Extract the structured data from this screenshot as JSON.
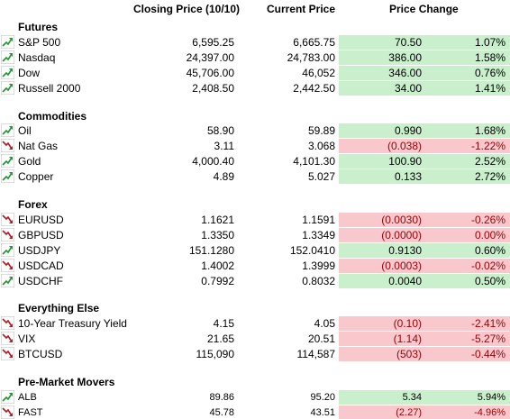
{
  "header": {
    "closing": "Closing Price (10/10)",
    "current": "Current Price",
    "change": "Price Change"
  },
  "sections": [
    {
      "title": "Futures",
      "rows": [
        {
          "name": "S&P 500",
          "close": "6,595.25",
          "current": "6,665.75",
          "change": "70.50",
          "pct": "1.07%",
          "trend": "up"
        },
        {
          "name": "Nasdaq",
          "close": "24,397.00",
          "current": "24,783.00",
          "change": "386.00",
          "pct": "1.58%",
          "trend": "up"
        },
        {
          "name": "Dow",
          "close": "45,706.00",
          "current": "46,052",
          "change": "346.00",
          "pct": "0.76%",
          "trend": "up"
        },
        {
          "name": "Russell 2000",
          "close": "2,408.50",
          "current": "2,442.50",
          "change": "34.00",
          "pct": "1.41%",
          "trend": "up"
        }
      ]
    },
    {
      "title": "Commodities",
      "rows": [
        {
          "name": "Oil",
          "close": "58.90",
          "current": "59.89",
          "change": "0.990",
          "pct": "1.68%",
          "trend": "up"
        },
        {
          "name": "Nat Gas",
          "close": "3.11",
          "current": "3.068",
          "change": "(0.038)",
          "pct": "-1.22%",
          "trend": "down"
        },
        {
          "name": "Gold",
          "close": "4,000.40",
          "current": "4,101.30",
          "change": "100.90",
          "pct": "2.52%",
          "trend": "up"
        },
        {
          "name": "Copper",
          "close": "4.89",
          "current": "5.027",
          "change": "0.133",
          "pct": "2.72%",
          "trend": "up"
        }
      ]
    },
    {
      "title": "Forex",
      "rows": [
        {
          "name": "EURUSD",
          "close": "1.1621",
          "current": "1.1591",
          "change": "(0.0030)",
          "pct": "-0.26%",
          "trend": "down"
        },
        {
          "name": "GBPUSD",
          "close": "1.3350",
          "current": "1.3349",
          "change": "(0.0000)",
          "pct": "0.00%",
          "trend": "down"
        },
        {
          "name": "USDJPY",
          "close": "151.1280",
          "current": "152.0410",
          "change": "0.9130",
          "pct": "0.60%",
          "trend": "up"
        },
        {
          "name": "USDCAD",
          "close": "1.4002",
          "current": "1.3999",
          "change": "(0.0003)",
          "pct": "-0.02%",
          "trend": "down"
        },
        {
          "name": "USDCHF",
          "close": "0.7992",
          "current": "0.8032",
          "change": "0.0040",
          "pct": "0.50%",
          "trend": "up"
        }
      ]
    },
    {
      "title": "Everything Else",
      "rows": [
        {
          "name": "10-Year Treasury Yield",
          "close": "4.15",
          "current": "4.05",
          "change": "(0.10)",
          "pct": "-2.41%",
          "trend": "down"
        },
        {
          "name": "VIX",
          "close": "21.65",
          "current": "20.51",
          "change": "(1.14)",
          "pct": "-5.27%",
          "trend": "down"
        },
        {
          "name": "BTCUSD",
          "close": "115,090",
          "current": "114,587",
          "change": "(503)",
          "pct": "-0.44%",
          "trend": "down"
        }
      ]
    },
    {
      "title": "Pre-Market Movers",
      "rows": [
        {
          "name": "ALB",
          "close": "89.86",
          "current": "95.20",
          "change": "5.34",
          "pct": "5.94%",
          "trend": "up"
        },
        {
          "name": "FAST",
          "close": "45.78",
          "current": "43.51",
          "change": "(2.27)",
          "pct": "-4.96%",
          "trend": "down"
        }
      ]
    }
  ]
}
